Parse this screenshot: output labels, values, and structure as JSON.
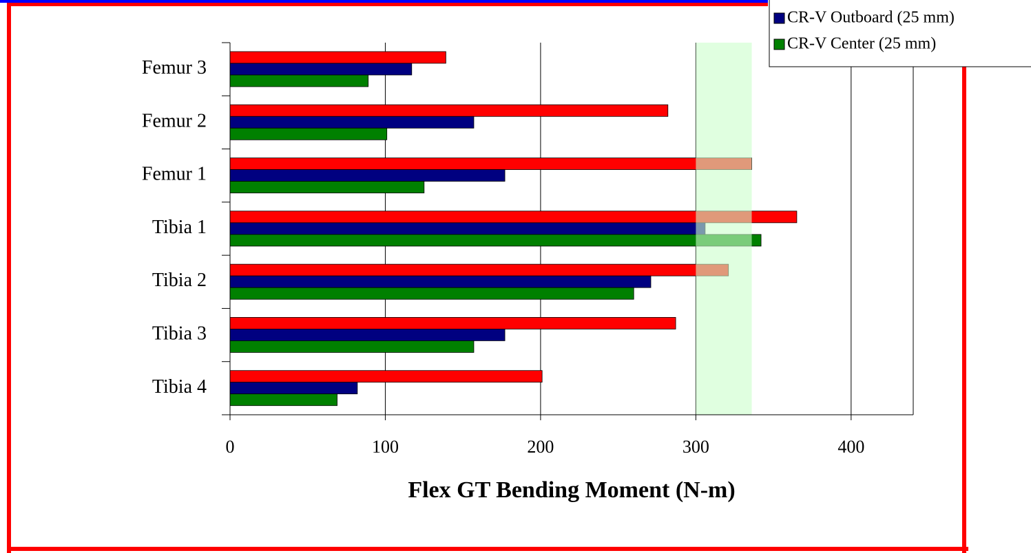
{
  "chart_data": {
    "type": "barh",
    "xlabel": "Flex GT Bending Moment (N-m)",
    "categories": [
      "Femur 3",
      "Femur 2",
      "Femur 1",
      "Tibia 1",
      "Tibia 2",
      "Tibia 3",
      "Tibia 4"
    ],
    "series": [
      {
        "color": "#ff0000",
        "values": [
          139,
          282,
          336,
          365,
          321,
          287,
          201
        ]
      },
      {
        "name": "CR-V Outboard (25 mm)",
        "color": "#000080",
        "values": [
          117,
          157,
          177,
          306,
          271,
          177,
          82
        ]
      },
      {
        "name": "CR-V Center (25 mm)",
        "color": "#008000",
        "values": [
          89,
          101,
          125,
          342,
          260,
          157,
          69
        ]
      }
    ],
    "xlim": [
      0,
      440
    ],
    "xticks": [
      0,
      100,
      200,
      300,
      400
    ],
    "grid": true,
    "highlight": [
      300,
      336
    ],
    "highlight_color": "#ccffcc",
    "legend": "upper right"
  }
}
